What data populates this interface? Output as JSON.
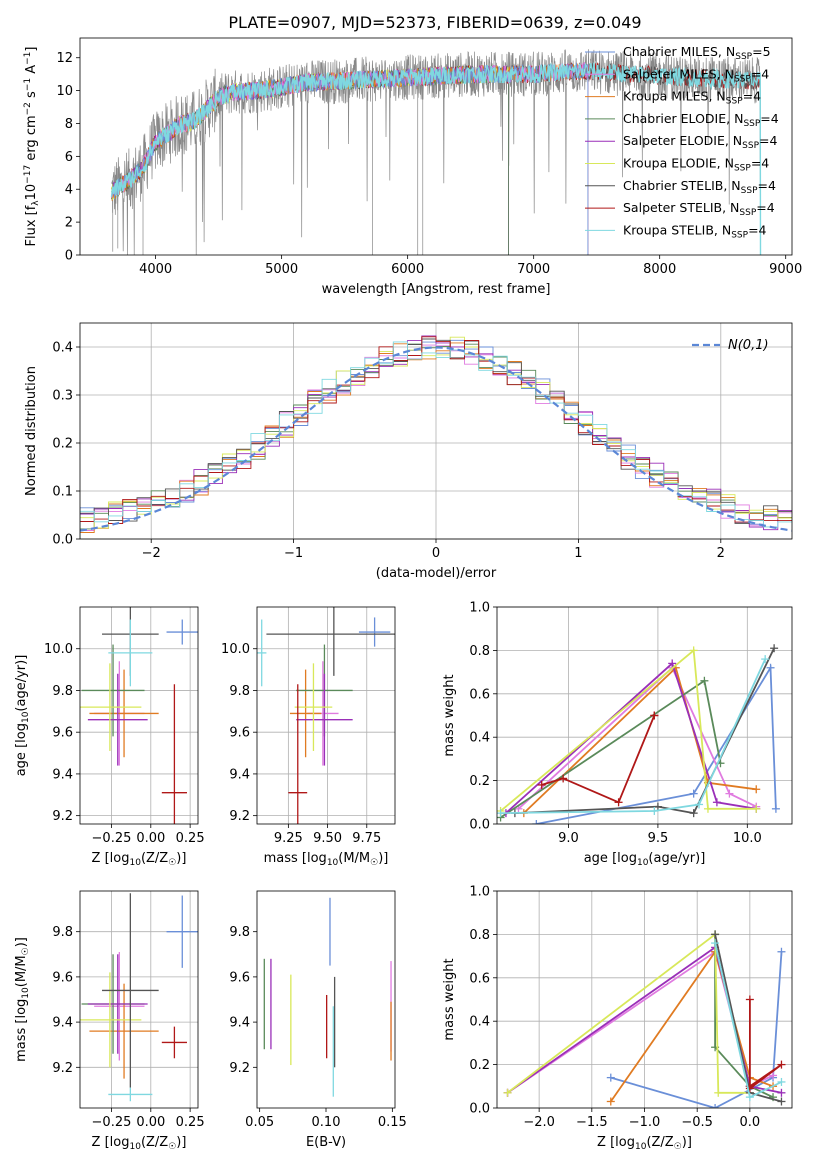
{
  "figure": {
    "title": "PLATE=0907, MJD=52373, FIBERID=0639, z=0.049"
  },
  "colors": {
    "Chabrier MILES": "#6a8fd8",
    "Salpeter MILES": "#e07be0",
    "Kroupa MILES": "#e07b22",
    "Chabrier ELODIE": "#5a8a5a",
    "Salpeter ELODIE": "#9a2fb8",
    "Kroupa ELODIE": "#d8e85a",
    "Chabrier STELIB": "#555555",
    "Salpeter STELIB": "#b01818",
    "Kroupa STELIB": "#7fd8e0",
    "data": "#888888",
    "normal": "#5b87d6"
  },
  "chart_data": [
    {
      "id": "spectrum",
      "type": "line",
      "xlabel": "wavelength [Angstrom, rest frame]",
      "ylabel": "Flux [f_λ10^-17 erg cm^-2 s^-1 A^-1]",
      "xlim": [
        3400,
        9050
      ],
      "ylim": [
        0,
        13.2
      ],
      "xticks": [
        4000,
        5000,
        6000,
        7000,
        8000,
        9000
      ],
      "yticks": [
        0,
        2,
        4,
        6,
        8,
        10,
        12
      ],
      "grid": false,
      "legend_position": "upper right",
      "legend": [
        {
          "label": "Chabrier MILES, N_SSP=5",
          "name": "Chabrier MILES"
        },
        {
          "label": "Salpeter MILES, N_SSP=4",
          "name": "Salpeter MILES"
        },
        {
          "label": "Kroupa MILES, N_SSP=4",
          "name": "Kroupa MILES"
        },
        {
          "label": "Chabrier ELODIE, N_SSP=4",
          "name": "Chabrier ELODIE"
        },
        {
          "label": "Salpeter ELODIE, N_SSP=4",
          "name": "Salpeter ELODIE"
        },
        {
          "label": "Kroupa ELODIE, N_SSP=4",
          "name": "Kroupa ELODIE"
        },
        {
          "label": "Chabrier STELIB, N_SSP=4",
          "name": "Chabrier STELIB"
        },
        {
          "label": "Salpeter STELIB, N_SSP=4",
          "name": "Salpeter STELIB"
        },
        {
          "label": "Kroupa STELIB, N_SSP=4",
          "name": "Kroupa STELIB"
        }
      ],
      "continuum": {
        "x": [
          3650,
          3800,
          3900,
          4000,
          4100,
          4200,
          4300,
          4400,
          4500,
          4600,
          4800,
          5000,
          5200,
          5500,
          6000,
          6500,
          7000,
          7400,
          7800,
          8200,
          8800
        ],
        "y": [
          3.8,
          4.6,
          5.3,
          6.9,
          7.4,
          8.0,
          8.1,
          8.8,
          9.6,
          9.9,
          10.0,
          10.2,
          10.5,
          10.6,
          10.8,
          11.0,
          11.0,
          11.2,
          11.0,
          10.8,
          10.6
        ]
      },
      "data_noise": 1.4,
      "model_ends": {
        "MILES": 7430,
        "ELODIE": 6800,
        "STELIB": 8800
      },
      "data_range": [
        3650,
        8800
      ]
    },
    {
      "id": "residuals",
      "type": "histogram",
      "xlabel": "(data-model)/error",
      "ylabel": "Normed distribution",
      "xlim": [
        -2.5,
        2.5
      ],
      "ylim": [
        0,
        0.45
      ],
      "xticks": [
        -2,
        -1,
        0,
        1,
        2
      ],
      "yticks": [
        0.0,
        0.1,
        0.2,
        0.3,
        0.4
      ],
      "grid": true,
      "legend": [
        {
          "label": "N(0,1)"
        }
      ],
      "bin_width": 0.1,
      "n_bins": 50
    },
    {
      "id": "age_vs_Z",
      "type": "scatter",
      "xlabel": "Z [log10(Z/Z☉)]",
      "ylabel": "age [log10(age/yr)]",
      "xlim": [
        -0.45,
        0.3
      ],
      "ylim": [
        9.16,
        10.2
      ],
      "xticks": [
        -0.25,
        0.0,
        0.25
      ],
      "xticklabels": [
        "−0.25",
        "0.00",
        "0.25"
      ],
      "yticks": [
        9.2,
        9.4,
        9.6,
        9.8,
        10.0
      ],
      "grid": true,
      "points": [
        {
          "name": "Chabrier MILES",
          "x": 0.2,
          "y": 10.08,
          "xerr": [
            0.1,
            0.1
          ],
          "yerr": [
            0.06,
            0.06
          ]
        },
        {
          "name": "Salpeter MILES",
          "x": -0.2,
          "y": 9.69,
          "xerr": [
            0.16,
            0.16
          ],
          "yerr": [
            0.25,
            0.25
          ]
        },
        {
          "name": "Kroupa MILES",
          "x": -0.17,
          "y": 9.69,
          "xerr": [
            0.22,
            0.22
          ],
          "yerr": [
            0.21,
            0.21
          ]
        },
        {
          "name": "Chabrier ELODIE",
          "x": -0.24,
          "y": 9.8,
          "xerr": [
            0.2,
            0.2
          ],
          "yerr": [
            0.22,
            0.22
          ]
        },
        {
          "name": "Salpeter ELODIE",
          "x": -0.21,
          "y": 9.66,
          "xerr": [
            0.19,
            0.19
          ],
          "yerr": [
            0.22,
            0.22
          ]
        },
        {
          "name": "Kroupa ELODIE",
          "x": -0.26,
          "y": 9.72,
          "xerr": [
            0.2,
            0.2
          ],
          "yerr": [
            0.21,
            0.21
          ]
        },
        {
          "name": "Chabrier STELIB",
          "x": -0.13,
          "y": 10.07,
          "xerr": [
            0.18,
            0.18
          ],
          "yerr": [
            0.2,
            0.2
          ]
        },
        {
          "name": "Salpeter STELIB",
          "x": 0.15,
          "y": 9.31,
          "xerr": [
            0.08,
            0.08
          ],
          "yerr": [
            0.52,
            0.52
          ]
        },
        {
          "name": "Kroupa STELIB",
          "x": -0.13,
          "y": 9.98,
          "xerr": [
            0.14,
            0.14
          ],
          "yerr": [
            0.16,
            0.16
          ]
        }
      ]
    },
    {
      "id": "age_vs_mass",
      "type": "scatter",
      "xlabel": "mass [log10(M/M☉)]",
      "ylabel": "",
      "xlim": [
        9.05,
        9.93
      ],
      "ylim": [
        9.16,
        10.2
      ],
      "xticks": [
        9.25,
        9.5,
        9.75
      ],
      "xticklabels": [
        "9.25",
        "9.50",
        "9.75"
      ],
      "yticks": [
        9.2,
        9.4,
        9.6,
        9.8,
        10.0
      ],
      "grid": true,
      "points": [
        {
          "name": "Chabrier MILES",
          "x": 9.8,
          "y": 10.08,
          "xerr": [
            0.1,
            0.1
          ],
          "yerr": [
            0.07,
            0.07
          ]
        },
        {
          "name": "Salpeter MILES",
          "x": 9.47,
          "y": 9.69,
          "xerr": [
            0.1,
            0.1
          ],
          "yerr": [
            0.25,
            0.25
          ]
        },
        {
          "name": "Kroupa MILES",
          "x": 9.36,
          "y": 9.69,
          "xerr": [
            0.1,
            0.1
          ],
          "yerr": [
            0.21,
            0.21
          ]
        },
        {
          "name": "Chabrier ELODIE",
          "x": 9.48,
          "y": 9.8,
          "xerr": [
            0.18,
            0.18
          ],
          "yerr": [
            0.22,
            0.22
          ]
        },
        {
          "name": "Salpeter ELODIE",
          "x": 9.48,
          "y": 9.66,
          "xerr": [
            0.18,
            0.18
          ],
          "yerr": [
            0.22,
            0.22
          ]
        },
        {
          "name": "Kroupa ELODIE",
          "x": 9.41,
          "y": 9.72,
          "xerr": [
            0.12,
            0.12
          ],
          "yerr": [
            0.21,
            0.21
          ]
        },
        {
          "name": "Chabrier STELIB",
          "x": 9.54,
          "y": 10.07,
          "xerr": [
            0.43,
            0.43
          ],
          "yerr": [
            0.2,
            0.2
          ]
        },
        {
          "name": "Salpeter STELIB",
          "x": 9.31,
          "y": 9.31,
          "xerr": [
            0.06,
            0.06
          ],
          "yerr": [
            0.52,
            0.52
          ]
        },
        {
          "name": "Kroupa STELIB",
          "x": 9.08,
          "y": 9.98,
          "xerr": [
            0.03,
            0.03
          ],
          "yerr": [
            0.16,
            0.16
          ]
        }
      ]
    },
    {
      "id": "mass_vs_Z",
      "type": "scatter",
      "xlabel": "Z [log10(Z/Z☉)]",
      "ylabel": "mass [log10(M/M☉)]",
      "xlim": [
        -0.45,
        0.3
      ],
      "ylim": [
        9.02,
        9.98
      ],
      "xticks": [
        -0.25,
        0.0,
        0.25
      ],
      "xticklabels": [
        "−0.25",
        "0.00",
        "0.25"
      ],
      "yticks": [
        9.2,
        9.4,
        9.6,
        9.8
      ],
      "grid": true,
      "points": [
        {
          "name": "Chabrier MILES",
          "x": 0.2,
          "y": 9.8,
          "xerr": [
            0.1,
            0.1
          ],
          "yerr": [
            0.16,
            0.16
          ]
        },
        {
          "name": "Salpeter MILES",
          "x": -0.2,
          "y": 9.47,
          "xerr": [
            0.16,
            0.16
          ],
          "yerr": [
            0.24,
            0.24
          ]
        },
        {
          "name": "Kroupa MILES",
          "x": -0.17,
          "y": 9.36,
          "xerr": [
            0.22,
            0.22
          ],
          "yerr": [
            0.21,
            0.21
          ]
        },
        {
          "name": "Chabrier ELODIE",
          "x": -0.24,
          "y": 9.48,
          "xerr": [
            0.2,
            0.2
          ],
          "yerr": [
            0.22,
            0.22
          ]
        },
        {
          "name": "Salpeter ELODIE",
          "x": -0.21,
          "y": 9.48,
          "xerr": [
            0.19,
            0.19
          ],
          "yerr": [
            0.22,
            0.22
          ]
        },
        {
          "name": "Kroupa ELODIE",
          "x": -0.26,
          "y": 9.41,
          "xerr": [
            0.2,
            0.2
          ],
          "yerr": [
            0.21,
            0.21
          ]
        },
        {
          "name": "Chabrier STELIB",
          "x": -0.13,
          "y": 9.54,
          "xerr": [
            0.18,
            0.18
          ],
          "yerr": [
            0.43,
            0.43
          ]
        },
        {
          "name": "Salpeter STELIB",
          "x": 0.15,
          "y": 9.31,
          "xerr": [
            0.08,
            0.08
          ],
          "yerr": [
            0.07,
            0.07
          ]
        },
        {
          "name": "Kroupa STELIB",
          "x": -0.13,
          "y": 9.08,
          "xerr": [
            0.14,
            0.14
          ],
          "yerr": [
            0.03,
            0.03
          ]
        }
      ]
    },
    {
      "id": "mass_vs_ebv",
      "type": "scatter",
      "xlabel": "E(B-V)",
      "ylabel": "",
      "xlim": [
        0.048,
        0.152
      ],
      "ylim": [
        9.02,
        9.98
      ],
      "xticks": [
        0.05,
        0.1,
        0.15
      ],
      "xticklabels": [
        "0.05",
        "0.10",
        "0.15"
      ],
      "yticks": [
        9.2,
        9.4,
        9.6,
        9.8
      ],
      "grid": false,
      "points": [
        {
          "name": "Chabrier MILES",
          "x": 0.103,
          "y": 9.8,
          "xerr": [
            0,
            0
          ],
          "yerr": [
            0.15,
            0.15
          ]
        },
        {
          "name": "Salpeter MILES",
          "x": 0.149,
          "y": 9.47,
          "xerr": [
            0,
            0
          ],
          "yerr": [
            0.2,
            0.2
          ]
        },
        {
          "name": "Kroupa MILES",
          "x": 0.149,
          "y": 9.36,
          "xerr": [
            0,
            0
          ],
          "yerr": [
            0.13,
            0.13
          ]
        },
        {
          "name": "Chabrier ELODIE",
          "x": 0.0535,
          "y": 9.48,
          "xerr": [
            0,
            0
          ],
          "yerr": [
            0.2,
            0.2
          ]
        },
        {
          "name": "Salpeter ELODIE",
          "x": 0.0585,
          "y": 9.48,
          "xerr": [
            0,
            0
          ],
          "yerr": [
            0.2,
            0.2
          ]
        },
        {
          "name": "Kroupa ELODIE",
          "x": 0.0735,
          "y": 9.41,
          "xerr": [
            0,
            0
          ],
          "yerr": [
            0.2,
            0.2
          ]
        },
        {
          "name": "Chabrier STELIB",
          "x": 0.1065,
          "y": 9.4,
          "xerr": [
            0,
            0
          ],
          "yerr": [
            0.2,
            0.2
          ]
        },
        {
          "name": "Salpeter STELIB",
          "x": 0.1005,
          "y": 9.38,
          "xerr": [
            0,
            0
          ],
          "yerr": [
            0.14,
            0.14
          ]
        },
        {
          "name": "Kroupa STELIB",
          "x": 0.1055,
          "y": 9.27,
          "xerr": [
            0,
            0
          ],
          "yerr": [
            0.2,
            0.2
          ]
        }
      ]
    },
    {
      "id": "weight_vs_age",
      "type": "line",
      "xlabel": "age [log10(age/yr)]",
      "ylabel": "mass weight",
      "xlim": [
        8.6,
        10.25
      ],
      "ylim": [
        0,
        1.0
      ],
      "xticks": [
        9.0,
        9.5,
        10.0
      ],
      "xticklabels": [
        "9.0",
        "9.5",
        "10.0"
      ],
      "yticks": [
        0.0,
        0.2,
        0.4,
        0.6,
        0.8,
        1.0
      ],
      "grid": true,
      "series": [
        {
          "name": "Chabrier MILES",
          "x": [
            8.82,
            9.7,
            10.13,
            10.16
          ],
          "y": [
            0.0,
            0.14,
            0.72,
            0.07
          ]
        },
        {
          "name": "Salpeter MILES",
          "x": [
            8.72,
            9.58,
            9.9,
            10.05
          ],
          "y": [
            0.07,
            0.72,
            0.14,
            0.08
          ]
        },
        {
          "name": "Kroupa MILES",
          "x": [
            8.75,
            9.6,
            9.78,
            10.05
          ],
          "y": [
            0.05,
            0.72,
            0.19,
            0.16
          ]
        },
        {
          "name": "Chabrier ELODIE",
          "x": [
            8.62,
            9.76,
            9.85
          ],
          "y": [
            0.03,
            0.66,
            0.28
          ]
        },
        {
          "name": "Salpeter ELODIE",
          "x": [
            8.65,
            9.58,
            9.83,
            10.05
          ],
          "y": [
            0.05,
            0.74,
            0.1,
            0.07
          ]
        },
        {
          "name": "Kroupa ELODIE",
          "x": [
            8.62,
            9.7,
            9.78,
            10.05
          ],
          "y": [
            0.06,
            0.8,
            0.07,
            0.07
          ]
        },
        {
          "name": "Chabrier STELIB",
          "x": [
            8.7,
            9.5,
            9.7,
            10.15
          ],
          "y": [
            0.05,
            0.08,
            0.05,
            0.81
          ]
        },
        {
          "name": "Salpeter STELIB",
          "x": [
            8.85,
            8.97,
            9.28,
            9.48,
            9.48
          ],
          "y": [
            0.18,
            0.21,
            0.1,
            0.5,
            0.5
          ]
        },
        {
          "name": "Kroupa STELIB",
          "x": [
            8.62,
            9.48,
            9.73,
            10.1
          ],
          "y": [
            0.05,
            0.06,
            0.09,
            0.76
          ]
        }
      ]
    },
    {
      "id": "weight_vs_Z",
      "type": "line",
      "xlabel": "Z [log10(Z/Z☉)]",
      "ylabel": "mass weight",
      "xlim": [
        -2.4,
        0.4
      ],
      "ylim": [
        0,
        1.0
      ],
      "xticks": [
        -2.0,
        -1.5,
        -1.0,
        -0.5,
        0.0
      ],
      "xticklabels": [
        "−2.0",
        "−1.5",
        "−1.0",
        "−0.5",
        "0.0"
      ],
      "yticks": [
        0.0,
        0.2,
        0.4,
        0.6,
        0.8,
        1.0
      ],
      "grid": true,
      "series": [
        {
          "name": "Chabrier MILES",
          "x": [
            -1.32,
            -0.33,
            0.22,
            0.3
          ],
          "y": [
            0.14,
            0.0,
            0.14,
            0.72
          ]
        },
        {
          "name": "Salpeter MILES",
          "x": [
            -2.3,
            -0.33,
            0.0,
            0.22
          ],
          "y": [
            0.07,
            0.72,
            0.1,
            0.15
          ]
        },
        {
          "name": "Kroupa MILES",
          "x": [
            -1.32,
            -0.33,
            0.0,
            0.22
          ],
          "y": [
            0.03,
            0.72,
            0.14,
            0.1
          ]
        },
        {
          "name": "Chabrier ELODIE",
          "x": [
            -0.33,
            -0.33,
            0.0,
            0.22
          ],
          "y": [
            0.8,
            0.28,
            0.1,
            0.05
          ]
        },
        {
          "name": "Salpeter ELODIE",
          "x": [
            -2.3,
            -0.33,
            0.0,
            0.3
          ],
          "y": [
            0.07,
            0.74,
            0.1,
            0.07
          ]
        },
        {
          "name": "Kroupa ELODIE",
          "x": [
            -2.3,
            -0.33,
            -0.3,
            0.0
          ],
          "y": [
            0.07,
            0.8,
            0.07,
            0.07
          ]
        },
        {
          "name": "Chabrier STELIB",
          "x": [
            -0.33,
            0.0,
            0.3
          ],
          "y": [
            0.8,
            0.07,
            0.03
          ]
        },
        {
          "name": "Salpeter STELIB",
          "x": [
            0.0,
            0.0,
            0.3,
            0.0
          ],
          "y": [
            0.5,
            0.09,
            0.2,
            0.1
          ]
        },
        {
          "name": "Kroupa STELIB",
          "x": [
            -0.33,
            0.0,
            0.3
          ],
          "y": [
            0.76,
            0.05,
            0.12
          ]
        }
      ]
    }
  ]
}
